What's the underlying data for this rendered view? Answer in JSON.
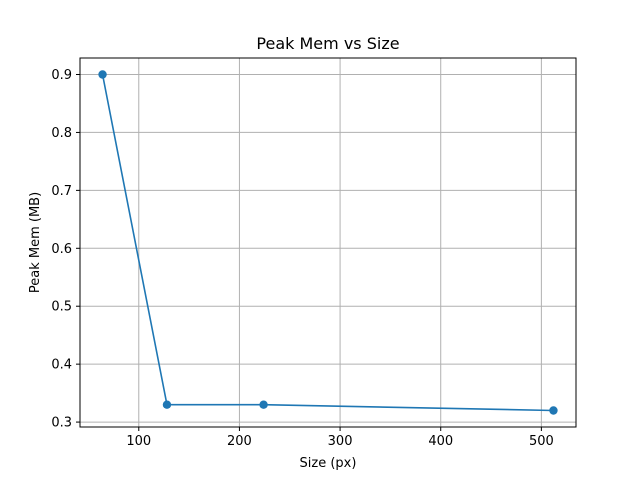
{
  "chart_data": {
    "type": "line",
    "title": "Peak Mem vs Size",
    "xlabel": "Size (px)",
    "ylabel": "Peak Mem (MB)",
    "x": [
      64,
      128,
      224,
      512
    ],
    "series": [
      {
        "values": [
          0.9,
          0.33,
          0.33,
          0.32
        ],
        "color": "#1f77b4",
        "marker": "circle"
      }
    ],
    "xlim": [
      41.6,
      534.4
    ],
    "ylim": [
      0.2915,
      0.9285
    ],
    "xticks": [
      100,
      200,
      300,
      400,
      500
    ],
    "yticks": [
      0.3,
      0.4,
      0.5,
      0.6,
      0.7,
      0.8,
      0.9
    ],
    "grid": true,
    "legend": "none"
  }
}
